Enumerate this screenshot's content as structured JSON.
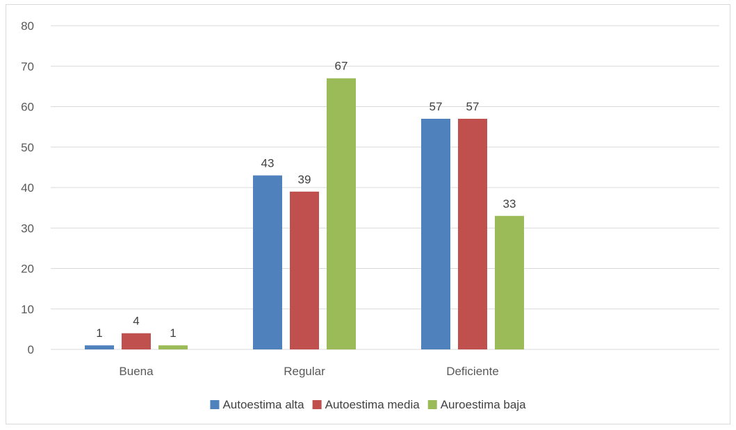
{
  "chart_data": {
    "type": "bar",
    "categories": [
      "Buena",
      "Regular",
      "Deficiente"
    ],
    "series": [
      {
        "name": "Autoestima alta",
        "values": [
          1,
          43,
          57
        ],
        "color": "#4f81bd"
      },
      {
        "name": "Autoestima media",
        "values": [
          4,
          39,
          57
        ],
        "color": "#c0504d"
      },
      {
        "name": "Auroestima baja",
        "values": [
          1,
          67,
          33
        ],
        "color": "#9bbb59"
      }
    ],
    "ylim": [
      0,
      80
    ],
    "yticks": [
      0,
      10,
      20,
      30,
      40,
      50,
      60,
      70,
      80
    ],
    "grid": true,
    "gridline_color": "#d9d9d9",
    "legend_position": "bottom",
    "data_labels": true
  }
}
